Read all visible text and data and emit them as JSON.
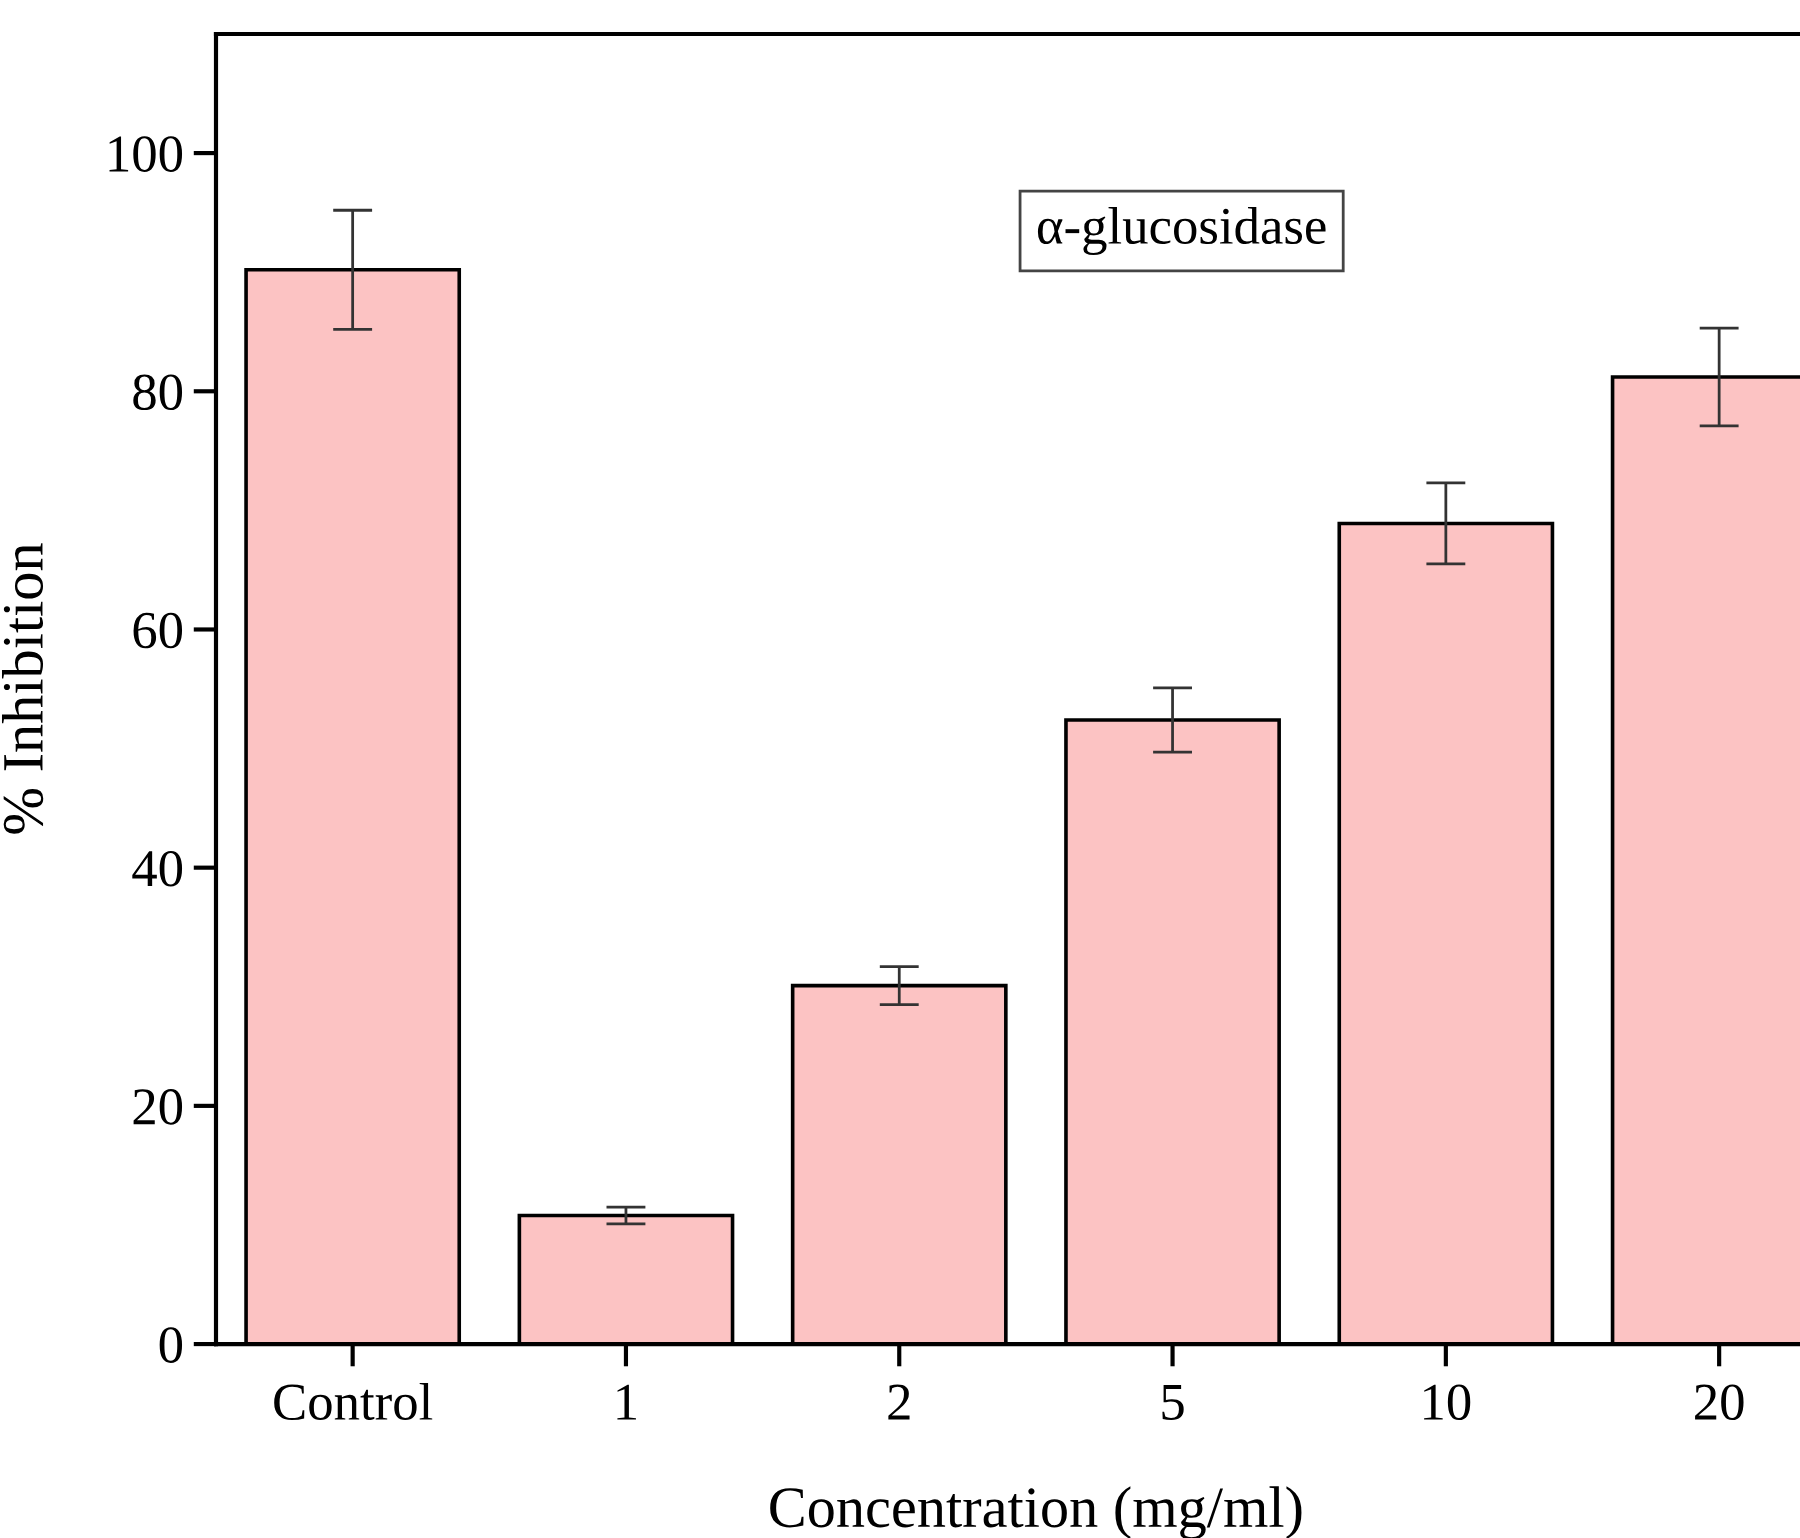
{
  "chart_data": {
    "type": "bar",
    "xlabel": "Concentration (mg/ml)",
    "ylabel": "% Inhibition",
    "categories": [
      "Control",
      "1",
      "2",
      "5",
      "10",
      "20"
    ],
    "values": [
      90.2,
      10.8,
      30.1,
      52.4,
      68.9,
      81.2
    ],
    "errors": [
      5.0,
      0.7,
      1.6,
      2.7,
      3.4,
      4.1
    ],
    "color": "#fcc3c3",
    "ylim": [
      0,
      110
    ],
    "yticks": [
      0,
      20,
      40,
      60,
      80,
      100
    ],
    "grid": false,
    "legend": false,
    "annotations": [
      "α-glucosidase"
    ]
  }
}
